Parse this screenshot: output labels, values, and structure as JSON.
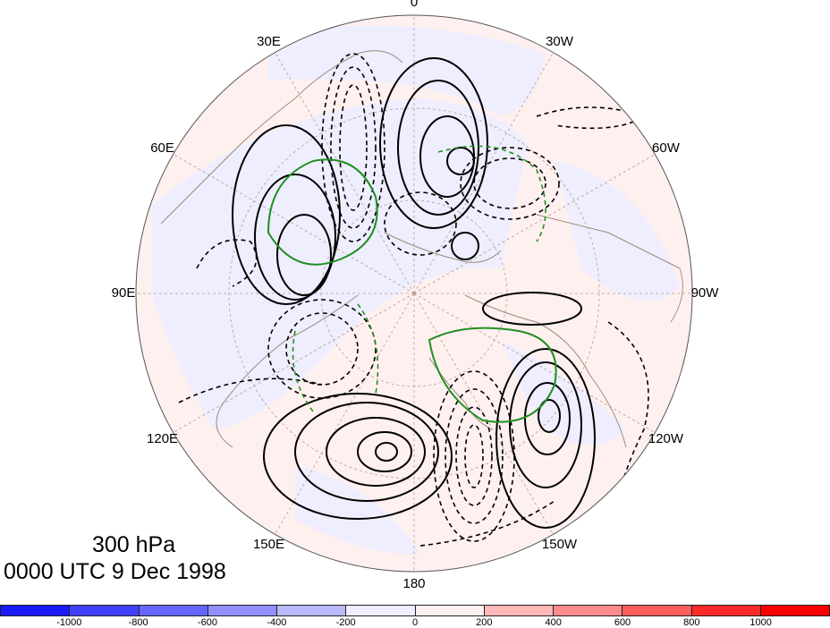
{
  "map": {
    "projection": "north-polar-stereographic",
    "level_label": "300 hPa",
    "time_label": "0000 UTC 9 Dec 1998",
    "longitude_labels": [
      "0",
      "30W",
      "60W",
      "90W",
      "120W",
      "150W",
      "180",
      "150E",
      "120E",
      "90E",
      "60E",
      "30E"
    ],
    "colors": {
      "coastline": "#9c8b7a",
      "graticule": "#b59e8a",
      "positive_contour": "#000000",
      "negative_contour": "#000000",
      "highlight_contour": "#1f8f1f",
      "shade_negative": "#eeeeff",
      "shade_positive": "#fff0f0"
    }
  },
  "colorbar": {
    "tick_labels": [
      "-1000",
      "-800",
      "-600",
      "-400",
      "-200",
      "0",
      "200",
      "400",
      "600",
      "800",
      "1000"
    ],
    "colors": [
      "#1a1aff",
      "#4040ff",
      "#6666ff",
      "#9090ff",
      "#babaff",
      "#eeeeff",
      "#fff0f0",
      "#ffb8b8",
      "#ff8c8c",
      "#ff5e5e",
      "#ff2a2a",
      "#ff0000"
    ]
  }
}
